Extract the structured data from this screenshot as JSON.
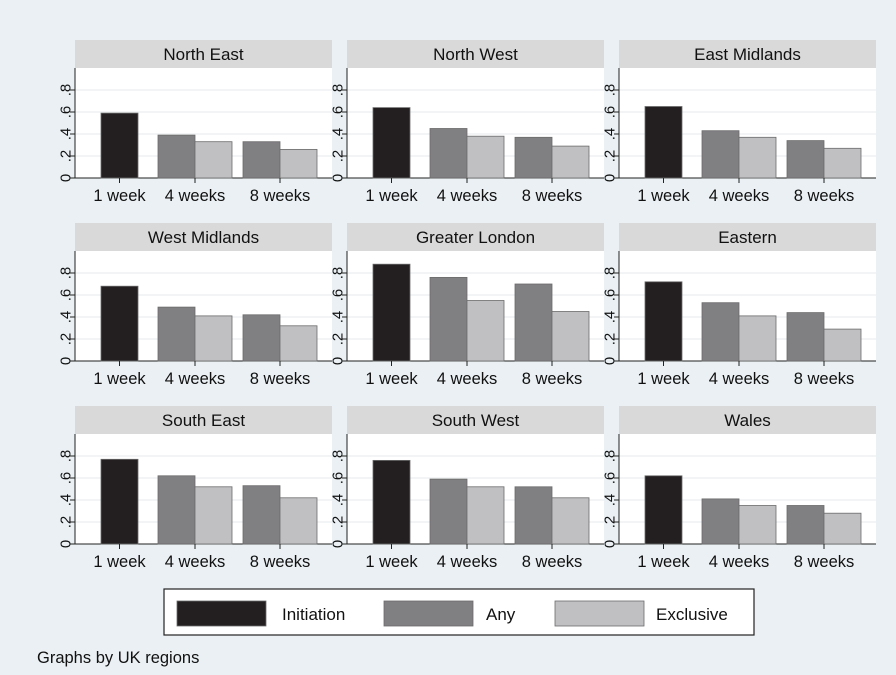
{
  "colors": {
    "background": "#eaf0f3",
    "panel": "#ffffff",
    "strip": "#d9d9d9",
    "gridline": "#e6eaec",
    "series": [
      "#231f20",
      "#807f82",
      "#c0c0c3"
    ]
  },
  "chart_data": {
    "type": "bar",
    "layout": "small-multiples 3x3",
    "categories": [
      "1 week",
      "4 weeks",
      "8 weeks"
    ],
    "y_ticks": [
      "0",
      ".2",
      ".4",
      ".6",
      ".8"
    ],
    "ylim": [
      0,
      1.0
    ],
    "grid": true,
    "legend_position": "bottom",
    "legend": [
      "Initiation",
      "Any",
      "Exclusive"
    ],
    "note": "Graphs by UK regions",
    "panels": [
      {
        "title": "North East",
        "values": {
          "initiation": 0.59,
          "any": [
            0.39,
            0.33
          ],
          "exclusive": [
            0.33,
            0.26
          ]
        }
      },
      {
        "title": "North West",
        "values": {
          "initiation": 0.64,
          "any": [
            0.45,
            0.37
          ],
          "exclusive": [
            0.38,
            0.29
          ]
        }
      },
      {
        "title": "East Midlands",
        "values": {
          "initiation": 0.65,
          "any": [
            0.43,
            0.34
          ],
          "exclusive": [
            0.37,
            0.27
          ]
        }
      },
      {
        "title": "West Midlands",
        "values": {
          "initiation": 0.68,
          "any": [
            0.49,
            0.42
          ],
          "exclusive": [
            0.41,
            0.32
          ]
        }
      },
      {
        "title": "Greater London",
        "values": {
          "initiation": 0.88,
          "any": [
            0.76,
            0.7
          ],
          "exclusive": [
            0.55,
            0.45
          ]
        }
      },
      {
        "title": "Eastern",
        "values": {
          "initiation": 0.72,
          "any": [
            0.53,
            0.44
          ],
          "exclusive": [
            0.41,
            0.29
          ]
        }
      },
      {
        "title": "South East",
        "values": {
          "initiation": 0.77,
          "any": [
            0.62,
            0.53
          ],
          "exclusive": [
            0.52,
            0.42
          ]
        }
      },
      {
        "title": "South West",
        "values": {
          "initiation": 0.76,
          "any": [
            0.59,
            0.52
          ],
          "exclusive": [
            0.52,
            0.42
          ]
        }
      },
      {
        "title": "Wales",
        "values": {
          "initiation": 0.62,
          "any": [
            0.41,
            0.35
          ],
          "exclusive": [
            0.35,
            0.28
          ]
        }
      }
    ]
  }
}
